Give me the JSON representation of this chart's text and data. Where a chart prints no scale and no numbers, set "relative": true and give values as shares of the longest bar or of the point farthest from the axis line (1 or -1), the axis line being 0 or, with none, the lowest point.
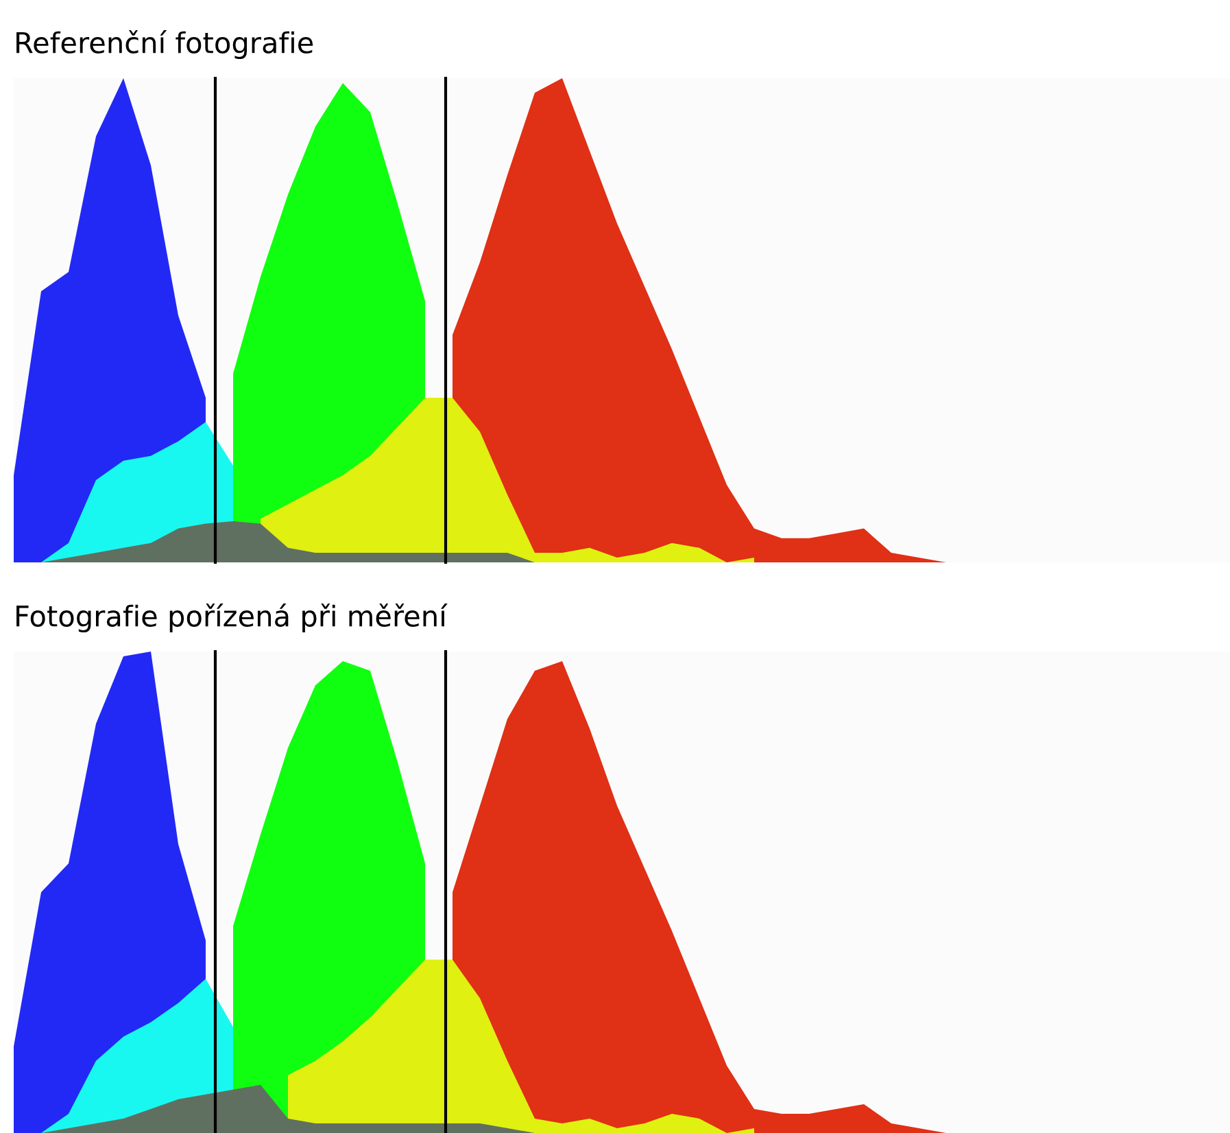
{
  "chart_data": [
    {
      "type": "area",
      "title": "Referenční fotografie",
      "relative": true,
      "legend": false,
      "categories": [
        null,
        null,
        null,
        null,
        null,
        null,
        null,
        null,
        null,
        null,
        null,
        null,
        null,
        null,
        null,
        null,
        null,
        null,
        null,
        null,
        null,
        null,
        null,
        null,
        null,
        null,
        null,
        null,
        null,
        null,
        null,
        null,
        null,
        null,
        null,
        null,
        null,
        null,
        null,
        null,
        null,
        null,
        null,
        null,
        null
      ],
      "series": [
        {
          "color": "#2229f5",
          "values": [
            0.18,
            0.56,
            0.6,
            0.88,
            1.0,
            0.82,
            0.51,
            0.34,
            null,
            null,
            null,
            null,
            null,
            null,
            null,
            null,
            null,
            null,
            null,
            null,
            null,
            null,
            null,
            null,
            null,
            null,
            null,
            null,
            null,
            null,
            null,
            null,
            null,
            null,
            null,
            null,
            null,
            null,
            null,
            null,
            null,
            null,
            null,
            null,
            null
          ]
        },
        {
          "color": "#10ff10",
          "values": [
            null,
            null,
            null,
            null,
            null,
            null,
            null,
            null,
            0.39,
            0.59,
            0.76,
            0.9,
            0.99,
            0.93,
            0.74,
            0.54,
            null,
            null,
            null,
            null,
            null,
            null,
            null,
            null,
            null,
            null,
            null,
            null,
            null,
            null,
            null,
            null,
            null,
            null,
            null,
            null,
            null,
            null,
            null,
            null,
            null,
            null,
            null,
            null,
            null
          ]
        },
        {
          "color": "#e03015",
          "values": [
            null,
            null,
            null,
            null,
            null,
            null,
            null,
            null,
            null,
            null,
            null,
            null,
            null,
            null,
            null,
            null,
            0.47,
            0.62,
            0.8,
            0.97,
            1.0,
            0.85,
            0.7,
            0.57,
            0.44,
            0.3,
            0.16,
            0.07,
            0.05,
            0.05,
            0.06,
            0.07,
            0.02,
            0.01,
            0,
            null,
            null,
            null,
            null,
            null,
            null,
            null,
            null,
            null,
            null
          ]
        },
        {
          "color": "#18f8f0",
          "values": [
            0,
            0,
            0.04,
            0.17,
            0.21,
            0.22,
            0.25,
            0.29,
            0.2,
            null,
            null,
            null,
            null,
            null,
            null,
            null,
            null,
            null,
            null,
            null,
            null,
            null,
            null,
            null,
            null,
            null,
            null,
            null,
            null,
            null,
            null,
            null,
            null,
            null,
            null,
            null,
            null,
            null,
            null,
            null,
            null,
            null,
            null,
            null,
            null
          ]
        },
        {
          "color": "#e0f010",
          "values": [
            null,
            null,
            null,
            null,
            null,
            null,
            null,
            null,
            null,
            0.09,
            0.12,
            0.15,
            0.18,
            0.22,
            0.28,
            0.34,
            0.34,
            0.27,
            0.14,
            0.02,
            0.02,
            0.03,
            0.01,
            0.02,
            0.04,
            0.03,
            0,
            0.01,
            null,
            null,
            null,
            null,
            null,
            null,
            null,
            null,
            null,
            null,
            null,
            null,
            null,
            null,
            null,
            null,
            null
          ]
        },
        {
          "color": "#607060",
          "values": [
            0,
            0,
            0.01,
            0.02,
            0.03,
            0.04,
            0.07,
            0.08,
            0.085,
            0.08,
            0.03,
            0.02,
            0.02,
            0.02,
            0.02,
            0.02,
            0.02,
            0.02,
            0.02,
            0,
            null,
            null,
            null,
            null,
            null,
            null,
            null,
            null,
            null,
            null,
            null,
            null,
            null,
            null,
            null,
            null,
            null,
            null,
            null,
            null,
            null,
            null,
            null,
            null,
            null
          ]
        }
      ]
    },
    {
      "type": "area",
      "title": "Fotografie pořízená při měření",
      "relative": true,
      "legend": false,
      "categories": [
        null,
        null,
        null,
        null,
        null,
        null,
        null,
        null,
        null,
        null,
        null,
        null,
        null,
        null,
        null,
        null,
        null,
        null,
        null,
        null,
        null,
        null,
        null,
        null,
        null,
        null,
        null,
        null,
        null,
        null,
        null,
        null,
        null,
        null,
        null,
        null,
        null,
        null,
        null,
        null,
        null,
        null,
        null,
        null,
        null
      ],
      "series": [
        {
          "color": "#2229f5",
          "values": [
            0.18,
            0.5,
            0.56,
            0.85,
            0.99,
            1.0,
            0.6,
            0.4,
            null,
            null,
            null,
            null,
            null,
            null,
            null,
            null,
            null,
            null,
            null,
            null,
            null,
            null,
            null,
            null,
            null,
            null,
            null,
            null,
            null,
            null,
            null,
            null,
            null,
            null,
            null,
            null,
            null,
            null,
            null,
            null,
            null,
            null,
            null,
            null,
            null
          ]
        },
        {
          "color": "#10ff10",
          "values": [
            null,
            null,
            null,
            null,
            null,
            null,
            null,
            null,
            0.43,
            0.62,
            0.8,
            0.93,
            0.98,
            0.96,
            0.77,
            0.56,
            null,
            null,
            null,
            null,
            null,
            null,
            null,
            null,
            null,
            null,
            null,
            null,
            null,
            null,
            null,
            null,
            null,
            null,
            null,
            null,
            null,
            null,
            null,
            null,
            null,
            null,
            null,
            null,
            null
          ]
        },
        {
          "color": "#e03015",
          "values": [
            null,
            null,
            null,
            null,
            null,
            null,
            null,
            null,
            null,
            null,
            null,
            null,
            null,
            null,
            null,
            null,
            0.5,
            0.68,
            0.86,
            0.96,
            0.98,
            0.84,
            0.68,
            0.55,
            0.42,
            0.28,
            0.14,
            0.05,
            0.04,
            0.04,
            0.05,
            0.06,
            0.02,
            0.01,
            0,
            null,
            null,
            null,
            null,
            null,
            null,
            null,
            null,
            null,
            null
          ]
        },
        {
          "color": "#18f8f0",
          "values": [
            0,
            0,
            0.04,
            0.15,
            0.2,
            0.23,
            0.27,
            0.32,
            0.22,
            null,
            null,
            null,
            null,
            null,
            null,
            null,
            null,
            null,
            null,
            null,
            null,
            null,
            null,
            null,
            null,
            null,
            null,
            null,
            null,
            null,
            null,
            null,
            null,
            null,
            null,
            null,
            null,
            null,
            null,
            null,
            null,
            null,
            null,
            null,
            null
          ]
        },
        {
          "color": "#e0f010",
          "values": [
            null,
            null,
            null,
            null,
            null,
            null,
            null,
            null,
            null,
            null,
            0.12,
            0.15,
            0.19,
            0.24,
            0.3,
            0.36,
            0.36,
            0.28,
            0.15,
            0.03,
            0.02,
            0.03,
            0.01,
            0.02,
            0.04,
            0.03,
            0,
            0.01,
            null,
            null,
            null,
            null,
            null,
            null,
            null,
            null,
            null,
            null,
            null,
            null,
            null,
            null,
            null,
            null,
            null
          ]
        },
        {
          "color": "#607060",
          "values": [
            0,
            0,
            0.01,
            0.02,
            0.03,
            0.05,
            0.07,
            0.08,
            0.09,
            0.1,
            0.03,
            0.02,
            0.02,
            0.02,
            0.02,
            0.02,
            0.02,
            0.02,
            0.01,
            0,
            null,
            null,
            null,
            null,
            null,
            null,
            null,
            null,
            null,
            null,
            null,
            null,
            null,
            null,
            null,
            null,
            null,
            null,
            null,
            null,
            null,
            null,
            null,
            null,
            null
          ]
        }
      ]
    }
  ]
}
